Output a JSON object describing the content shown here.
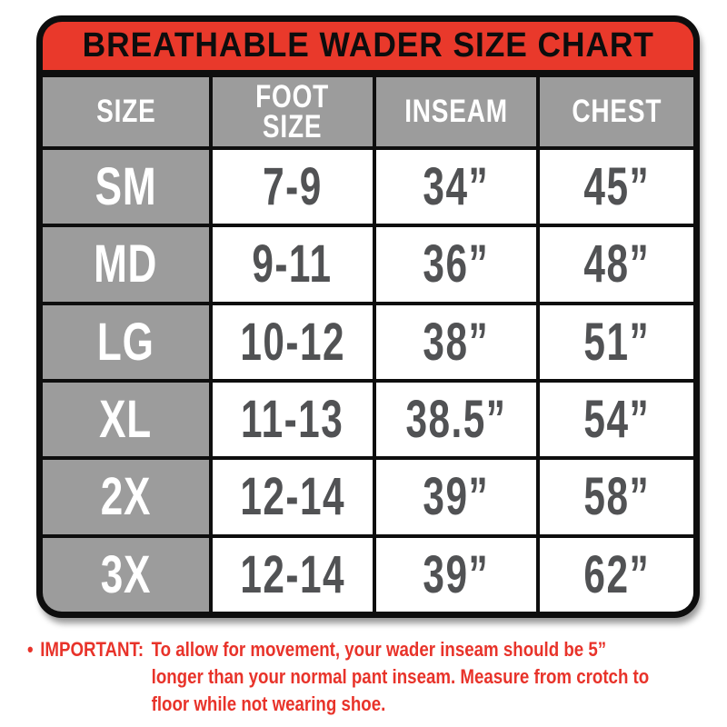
{
  "header": {
    "title": "BREATHABLE WADER SIZE CHART"
  },
  "colors": {
    "banner_red": "#e9392b",
    "note_red": "#e8332a",
    "cell_gray": "#9c9c9c",
    "frame_black": "#0e0e0e",
    "value_text_gray": "#515254",
    "header_text_white": "#ffffff"
  },
  "table": {
    "columns": [
      {
        "label": "SIZE"
      },
      {
        "label": "FOOT SIZE"
      },
      {
        "label": "INSEAM"
      },
      {
        "label": "CHEST"
      }
    ],
    "rows": [
      {
        "size": "SM",
        "foot_size": "7-9",
        "inseam": "34”",
        "chest": "45”"
      },
      {
        "size": "MD",
        "foot_size": "9-11",
        "inseam": "36”",
        "chest": "48”"
      },
      {
        "size": "LG",
        "foot_size": "10-12",
        "inseam": "38”",
        "chest": "51”"
      },
      {
        "size": "XL",
        "foot_size": "11-13",
        "inseam": "38.5”",
        "chest": "54”"
      },
      {
        "size": "2X",
        "foot_size": "12-14",
        "inseam": "39”",
        "chest": "58”"
      },
      {
        "size": "3X",
        "foot_size": "12-14",
        "inseam": "39”",
        "chest": "62”"
      }
    ]
  },
  "note": {
    "bullet": "•",
    "label": "IMPORTANT:",
    "lines": [
      "To allow for movement, your wader inseam should be 5”",
      "longer than your normal pant inseam. Measure from crotch to",
      "floor while not wearing shoe."
    ]
  },
  "chart_data": {
    "type": "table",
    "title": "BREATHABLE WADER SIZE CHART",
    "columns": [
      "SIZE",
      "FOOT SIZE",
      "INSEAM",
      "CHEST"
    ],
    "rows": [
      [
        "SM",
        "7-9",
        "34\"",
        "45\""
      ],
      [
        "MD",
        "9-11",
        "36\"",
        "48\""
      ],
      [
        "LG",
        "10-12",
        "38\"",
        "51\""
      ],
      [
        "XL",
        "11-13",
        "38.5\"",
        "54\""
      ],
      [
        "2X",
        "12-14",
        "39\"",
        "58\""
      ],
      [
        "3X",
        "12-14",
        "39\"",
        "62\""
      ]
    ],
    "footnote": "IMPORTANT: To allow for movement, your wader inseam should be 5\" longer than your normal pant inseam. Measure from crotch to floor while not wearing shoe."
  }
}
